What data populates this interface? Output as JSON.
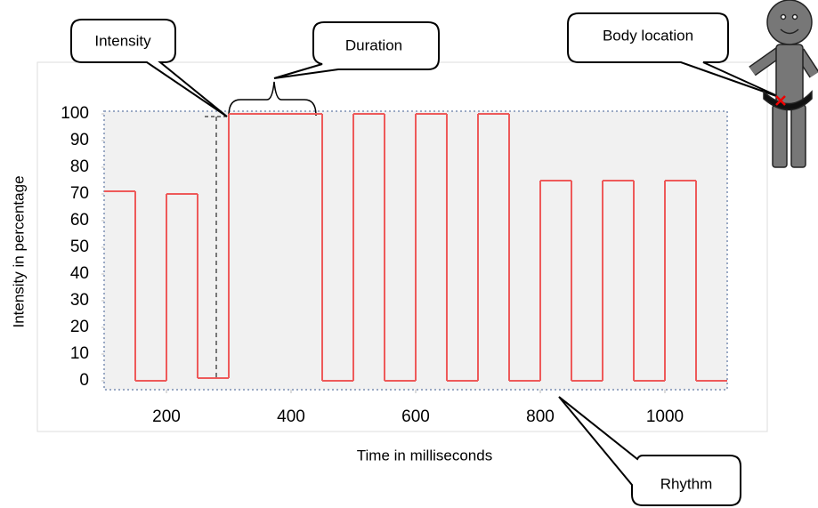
{
  "chart_data": {
    "type": "step",
    "x_label": "Time in milliseconds",
    "y_label": "Intensity in percentage",
    "annotations": [
      "Intensity",
      "Duration",
      "Body location",
      "Rhythm"
    ],
    "x": [
      100,
      150,
      200,
      250,
      300,
      450,
      500,
      550,
      600,
      650,
      700,
      750,
      800,
      850,
      900,
      950,
      1000,
      1050
    ],
    "values": [
      71,
      0,
      70,
      1,
      100,
      0,
      100,
      0,
      100,
      0,
      100,
      0,
      75,
      0,
      75,
      0,
      75,
      0
    ],
    "color": "#ee5a5a",
    "xlim": [
      100,
      1100
    ],
    "ylim": [
      0,
      100
    ],
    "xticks": [
      200,
      400,
      600,
      800,
      1000
    ],
    "yticks": [
      0,
      10,
      20,
      30,
      40,
      50,
      60,
      70,
      80,
      90,
      100
    ]
  }
}
